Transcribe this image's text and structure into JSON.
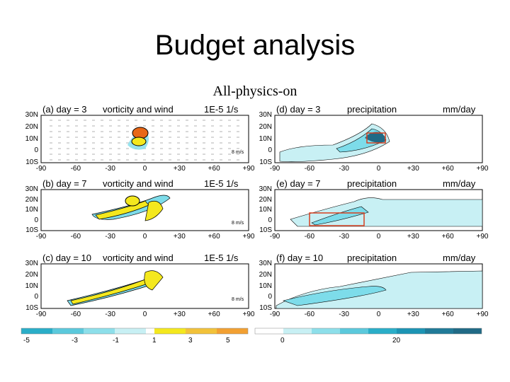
{
  "title": "Budget analysis",
  "subtitle": "All-physics-on",
  "colors": {
    "cyan_light": "#c8f0f4",
    "cyan_mid": "#7ddcea",
    "cyan_dark": "#2aaec8",
    "teal_dark": "#206a86",
    "yellow": "#f4e81e",
    "orange": "#f2a032",
    "orange_dark": "#e86818",
    "box_red": "#d84020"
  },
  "panels": [
    {
      "label": "(a) day = 3",
      "field": "vorticity and wind",
      "units": "1E-5 1/s",
      "ref": "8 m/s"
    },
    {
      "label": "(b) day = 7",
      "field": "vorticity and wind",
      "units": "1E-5 1/s",
      "ref": "8 m/s"
    },
    {
      "label": "(c) day = 10",
      "field": "vorticity and wind",
      "units": "1E-5 1/s",
      "ref": "8 m/s"
    },
    {
      "label": "(d) day = 3",
      "field": "precipitation",
      "units": "mm/day"
    },
    {
      "label": "(e) day = 7",
      "field": "precipitation",
      "units": "mm/day"
    },
    {
      "label": "(f) day = 10",
      "field": "precipitation",
      "units": "mm/day"
    }
  ],
  "lat_ticks": [
    "30N",
    "20N",
    "10N",
    "0",
    "10S"
  ],
  "lon_ticks": [
    "-90",
    "-60",
    "-30",
    "0",
    "+30",
    "+60",
    "+90"
  ],
  "colorbar_left": [
    "-5",
    "-3",
    "-1",
    "1",
    "3",
    "5"
  ],
  "colorbar_right": [
    "0",
    "20"
  ]
}
